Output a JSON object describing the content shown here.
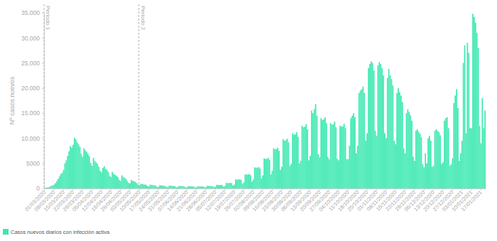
{
  "chart_data": {
    "type": "bar",
    "y_label": "Nº casos nuevos",
    "categories": [
      "01/03/2020",
      null,
      null,
      null,
      null,
      null,
      null,
      "08/03/2020",
      null,
      null,
      null,
      null,
      null,
      null,
      "15/03/2020",
      null,
      null,
      null,
      null,
      null,
      null,
      "22/03/2020",
      null,
      null,
      null,
      null,
      null,
      null,
      "29/03/2020",
      null,
      null,
      null,
      null,
      null,
      null,
      "05/04/2020",
      null,
      null,
      null,
      null,
      null,
      null,
      "12/04/2020",
      null,
      null,
      null,
      null,
      null,
      null,
      "19/04/2020",
      null,
      null,
      null,
      null,
      null,
      null,
      "26/04/2020",
      null,
      null,
      null,
      null,
      null,
      null,
      "03/05/2020",
      null,
      null,
      null,
      null,
      null,
      null,
      "10/05/2020",
      null,
      null,
      null,
      null,
      null,
      null,
      "17/05/2020",
      null,
      null,
      null,
      null,
      null,
      null,
      "24/05/2020",
      null,
      null,
      null,
      null,
      null,
      null,
      "31/05/2020",
      null,
      null,
      null,
      null,
      null,
      null,
      "07/06/2020",
      null,
      null,
      null,
      null,
      null,
      null,
      "14/06/2020",
      null,
      null,
      null,
      null,
      null,
      null,
      "21/06/2020",
      null,
      null,
      null,
      null,
      null,
      null,
      "28/06/2020",
      null,
      null,
      null,
      null,
      null,
      null,
      "05/07/2020",
      null,
      null,
      null,
      null,
      null,
      null,
      "12/07/2020",
      null,
      null,
      null,
      null,
      null,
      null,
      "19/07/2020",
      null,
      null,
      null,
      null,
      null,
      null,
      "26/07/2020",
      null,
      null,
      null,
      null,
      null,
      null,
      "02/08/2020",
      null,
      null,
      null,
      null,
      null,
      null,
      "09/08/2020",
      null,
      null,
      null,
      null,
      null,
      null,
      "16/08/2020",
      null,
      null,
      null,
      null,
      null,
      null,
      "23/08/2020",
      null,
      null,
      null,
      null,
      null,
      null,
      "30/08/2020",
      null,
      null,
      null,
      null,
      null,
      null,
      "06/09/2020",
      null,
      null,
      null,
      null,
      null,
      null,
      "13/09/2020",
      null,
      null,
      null,
      null,
      null,
      null,
      "20/09/2020",
      null,
      null,
      null,
      null,
      null,
      null,
      "27/09/2020",
      null,
      null,
      null,
      null,
      null,
      null,
      "04/10/2020",
      null,
      null,
      null,
      null,
      null,
      null,
      "11/10/2020",
      null,
      null,
      null,
      null,
      null,
      null,
      "18/10/2020",
      null,
      null,
      null,
      null,
      null,
      null,
      "25/10/2020",
      null,
      null,
      null,
      null,
      null,
      null,
      "01/11/2020",
      null,
      null,
      null,
      null,
      null,
      null,
      "08/11/2020",
      null,
      null,
      null,
      null,
      null,
      null,
      "15/11/2020",
      null,
      null,
      null,
      null,
      null,
      null,
      "22/11/2020",
      null,
      null,
      null,
      null,
      null,
      null,
      "29/11/2020",
      null,
      null,
      null,
      null,
      null,
      null,
      "06/12/2020",
      null,
      null,
      null,
      null,
      null,
      null,
      "13/12/2020",
      null,
      null,
      null,
      null,
      null,
      null,
      "20/12/2020",
      null,
      null,
      null,
      null,
      null,
      null,
      "27/12/2020",
      null,
      null,
      null,
      null,
      null,
      null,
      "03/01/2021",
      null,
      null,
      null,
      null,
      null,
      null,
      "10/01/2021",
      null,
      null,
      null,
      null,
      null,
      null,
      "17/01/2021",
      null,
      null,
      null
    ],
    "series": [
      {
        "name": "Casos nuevos diarios con infección activa",
        "color": "#3be8b0",
        "values": [
          90,
          130,
          190,
          260,
          380,
          520,
          600,
          750,
          1050,
          1450,
          1900,
          2400,
          2900,
          3100,
          3700,
          5000,
          5600,
          6500,
          7400,
          8400,
          8100,
          8700,
          10100,
          9800,
          9200,
          8800,
          8300,
          6900,
          6300,
          8000,
          7600,
          7300,
          6900,
          6400,
          5100,
          4500,
          6100,
          5500,
          5200,
          4900,
          4300,
          3500,
          3200,
          4100,
          4400,
          3900,
          3700,
          3300,
          2500,
          2300,
          3300,
          2900,
          2700,
          2500,
          2300,
          1700,
          1500,
          2600,
          2300,
          2100,
          1900,
          1500,
          1100,
          1000,
          1700,
          1500,
          1400,
          1300,
          1050,
          750,
          650,
          950,
          850,
          800,
          750,
          700,
          450,
          400,
          750,
          700,
          650,
          600,
          550,
          320,
          300,
          650,
          600,
          550,
          520,
          480,
          290,
          280,
          580,
          540,
          500,
          480,
          440,
          260,
          250,
          500,
          470,
          450,
          430,
          410,
          240,
          240,
          450,
          430,
          410,
          390,
          370,
          220,
          230,
          430,
          410,
          400,
          390,
          370,
          230,
          250,
          500,
          490,
          480,
          470,
          450,
          270,
          320,
          700,
          680,
          660,
          700,
          650,
          360,
          480,
          1100,
          1050,
          1080,
          1120,
          1050,
          560,
          750,
          1800,
          1750,
          1780,
          1820,
          1700,
          900,
          1200,
          2800,
          2750,
          2780,
          2850,
          2650,
          1350,
          1800,
          4200,
          4100,
          4150,
          4250,
          3950,
          2000,
          2600,
          6000,
          5850,
          5900,
          6100,
          5700,
          2800,
          3500,
          8000,
          7800,
          7850,
          8100,
          7500,
          3700,
          4300,
          9800,
          9500,
          9600,
          9900,
          9200,
          4500,
          4900,
          11000,
          10700,
          10800,
          11200,
          10300,
          5000,
          5500,
          12500,
          12200,
          12300,
          12800,
          11800,
          5600,
          6500,
          15500,
          15000,
          15800,
          16800,
          14500,
          6800,
          6200,
          14000,
          13600,
          13800,
          14200,
          13000,
          6300,
          5800,
          13000,
          12700,
          12800,
          13300,
          12200,
          5900,
          5600,
          12500,
          12300,
          12400,
          12900,
          12000,
          5800,
          5800,
          8500,
          14000,
          14500,
          15000,
          14200,
          7000,
          8500,
          19000,
          19500,
          19800,
          20300,
          19000,
          9500,
          11000,
          24000,
          24800,
          25300,
          25000,
          23500,
          11500,
          10500,
          24500,
          25200,
          24800,
          24000,
          22500,
          11000,
          10000,
          22000,
          23800,
          22500,
          21800,
          20500,
          9500,
          8800,
          19000,
          20000,
          19200,
          18500,
          17200,
          8000,
          7000,
          15000,
          15800,
          15200,
          14600,
          13500,
          6300,
          5500,
          11500,
          11800,
          11300,
          10900,
          10200,
          4800,
          4200,
          7000,
          5000,
          10000,
          10500,
          9500,
          4300,
          4500,
          11500,
          11800,
          11500,
          11200,
          10600,
          4900,
          5200,
          13500,
          14000,
          14200,
          12000,
          4500,
          4800,
          6000,
          17000,
          18500,
          19800,
          16000,
          5500,
          7000,
          9500,
          25000,
          28500,
          11000,
          29000,
          27000,
          12000,
          12000,
          34800,
          34200,
          33000,
          31000,
          28000,
          12500,
          9000,
          18000,
          12000,
          15500
        ]
      }
    ],
    "ylim": [
      0,
      35000
    ],
    "yticks": [
      0,
      5000,
      {
        "value": 10000,
        "label": "10.000"
      },
      {
        "value": 15000,
        "label": "15.000"
      },
      {
        "value": 20000,
        "label": "20.000"
      },
      {
        "value": 25000,
        "label": "25.000"
      },
      {
        "value": 30000,
        "label": "30.000"
      },
      {
        "value": 35000,
        "label": "35.000"
      }
    ],
    "grid": false,
    "legend": "bottom-left",
    "annotations": [
      {
        "text": "Periodo 1",
        "index": 0
      },
      {
        "text": "Periodo 2",
        "index": 70
      }
    ]
  }
}
